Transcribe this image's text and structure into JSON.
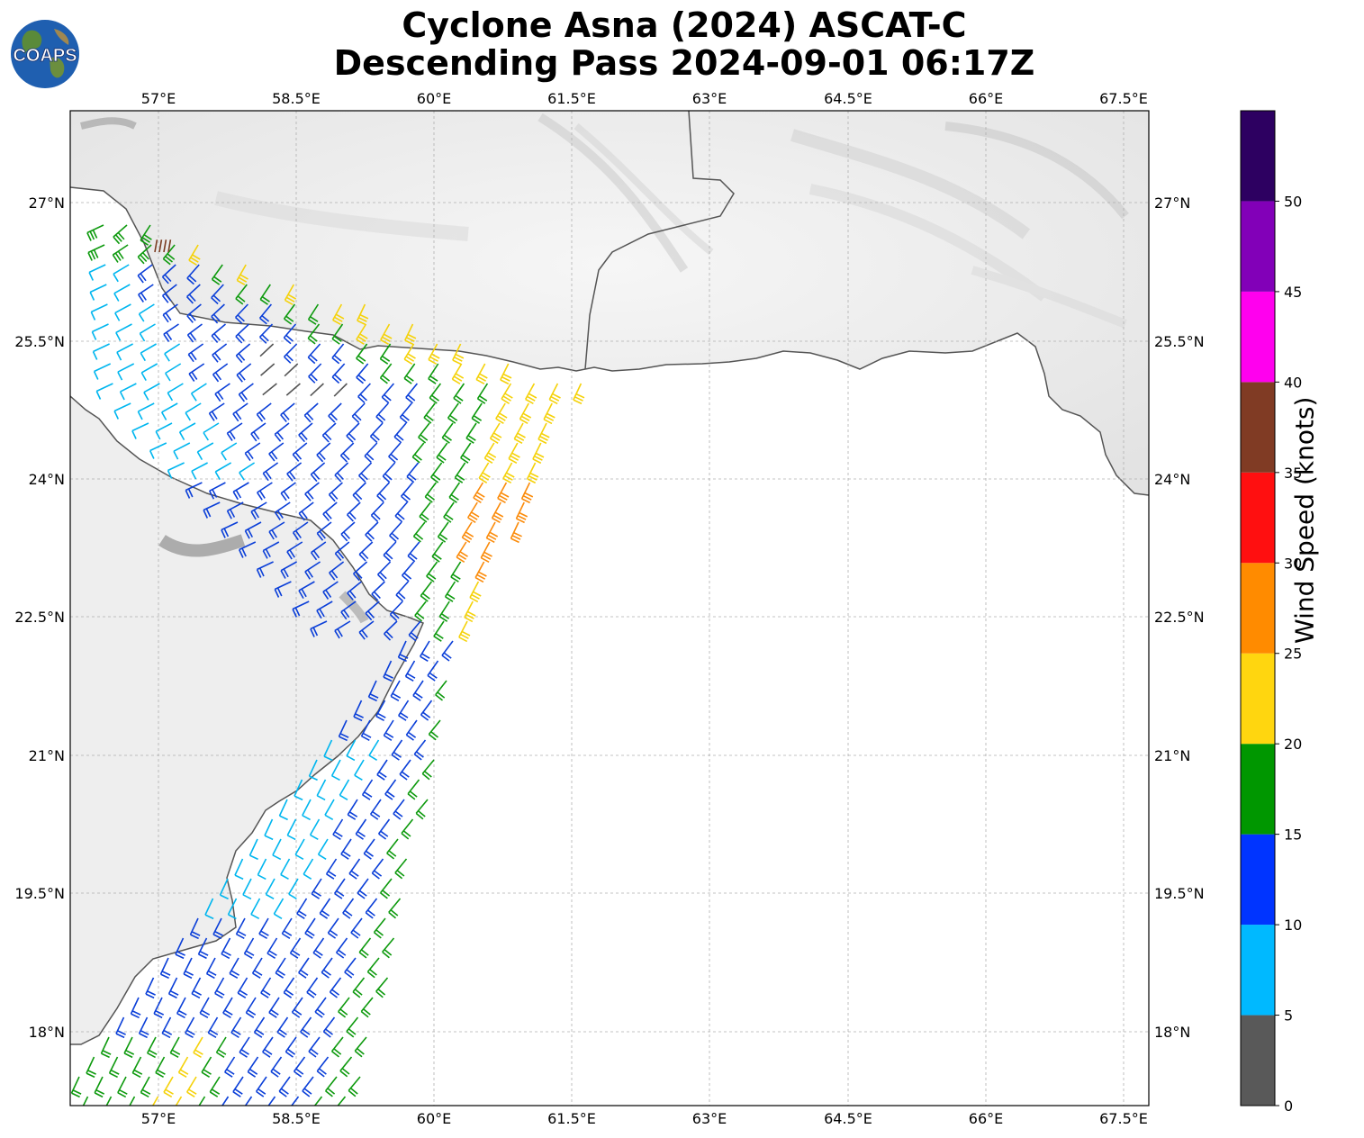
{
  "title": {
    "line1": "Cyclone Asna (2024) ASCAT-C",
    "line2": "Descending Pass 2024-09-01 06:17Z"
  },
  "logo": {
    "text": "COAPS",
    "icon": "globe-icon"
  },
  "map": {
    "lon_ticks": [
      "57°E",
      "58.5°E",
      "60°E",
      "61.5°E",
      "63°E",
      "64.5°E",
      "66°E",
      "67.5°E"
    ],
    "lat_ticks": [
      "27°N",
      "25.5°N",
      "24°N",
      "22.5°N",
      "21°N",
      "19.5°N",
      "18°N"
    ],
    "lon_range": [
      56.05,
      67.75
    ],
    "lat_range": [
      17.2,
      28.0
    ],
    "gridlines": true,
    "coastline_color": "#555555",
    "barb_color_blue": "#0b3fd8",
    "barb_color_cyan": "#00b6ef",
    "barb_color_green": "#0e9a0e",
    "barb_color_yellow": "#f5d20a",
    "barb_color_orange": "#fb8b0a",
    "barb_color_brown": "#7a3b20",
    "barb_color_gray": "#555555"
  },
  "colorbar": {
    "label": "Wind Speed (knots)",
    "ticks": [
      "0",
      "5",
      "10",
      "15",
      "20",
      "25",
      "30",
      "35",
      "40",
      "45",
      "50"
    ],
    "colors": [
      "#595959",
      "#00b9ff",
      "#0034ff",
      "#009700",
      "#ffd60f",
      "#ff8b00",
      "#ff0f10",
      "#803b24",
      "#ff00ee",
      "#8200b8",
      "#2d0061"
    ]
  }
}
